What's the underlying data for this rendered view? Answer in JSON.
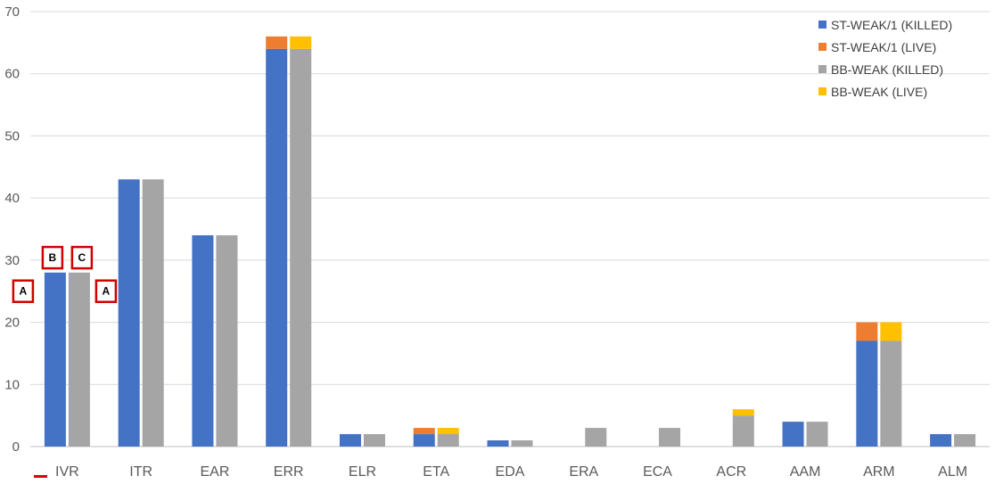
{
  "chart_data": {
    "type": "bar",
    "stacked": true,
    "categories": [
      "IVR",
      "ITR",
      "EAR",
      "ERR",
      "ELR",
      "ETA",
      "EDA",
      "ERA",
      "ECA",
      "ACR",
      "AAM",
      "ARM",
      "ALM"
    ],
    "ylim": [
      0,
      70
    ],
    "yticks": [
      0,
      10,
      20,
      30,
      40,
      50,
      60,
      70
    ],
    "grid": true,
    "legend_position": "top-right",
    "series": [
      {
        "name": "ST-WEAK/1 (KILLED)",
        "color": "#4472C4",
        "stack": "ST",
        "values": [
          28,
          43,
          34,
          64,
          2,
          2,
          1,
          0,
          0,
          0,
          4,
          17,
          2
        ]
      },
      {
        "name": "ST-WEAK/1 (LIVE)",
        "color": "#ED7D31",
        "stack": "ST",
        "values": [
          0,
          0,
          0,
          2,
          0,
          1,
          0,
          0,
          0,
          0,
          0,
          3,
          0
        ]
      },
      {
        "name": "BB-WEAK (KILLED)",
        "color": "#A5A5A5",
        "stack": "BB",
        "values": [
          28,
          43,
          34,
          64,
          2,
          2,
          1,
          3,
          3,
          5,
          4,
          17,
          2
        ]
      },
      {
        "name": "BB-WEAK (LIVE)",
        "color": "#FFC000",
        "stack": "BB",
        "values": [
          0,
          0,
          0,
          2,
          0,
          1,
          0,
          0,
          0,
          1,
          0,
          3,
          0
        ]
      }
    ],
    "annotations": [
      {
        "label": "A",
        "category": "IVR",
        "anchor": "left",
        "value": 25
      },
      {
        "label": "B",
        "category": "IVR",
        "anchor": "st-bar",
        "value": 30.4
      },
      {
        "label": "C",
        "category": "IVR",
        "anchor": "bb-bar",
        "value": 30.4
      },
      {
        "label": "A",
        "category": "IVR",
        "anchor": "right",
        "value": 25
      }
    ]
  }
}
